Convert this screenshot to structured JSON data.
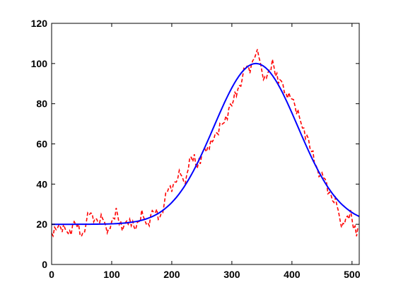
{
  "chart_data": {
    "type": "line",
    "title": "",
    "xlabel": "",
    "ylabel": "",
    "xlim": [
      0,
      512
    ],
    "ylim": [
      0,
      120
    ],
    "grid": false,
    "xticks": [
      0,
      100,
      200,
      300,
      400,
      500
    ],
    "yticks": [
      0,
      20,
      40,
      60,
      80,
      100,
      120
    ],
    "xtick_labels": [
      "0",
      "100",
      "200",
      "300",
      "400",
      "500"
    ],
    "ytick_labels": [
      "0",
      "20",
      "40",
      "60",
      "80",
      "100",
      "120"
    ],
    "series": [
      {
        "style": "dashed",
        "color": "#ff0000",
        "x": [
          0,
          10,
          20,
          30,
          40,
          50,
          60,
          70,
          80,
          90,
          100,
          110,
          120,
          130,
          140,
          150,
          160,
          170,
          180,
          190,
          200,
          210,
          220,
          230,
          240,
          250,
          260,
          270,
          280,
          290,
          300,
          310,
          320,
          330,
          340,
          350,
          360,
          370,
          380,
          390,
          400,
          410,
          420,
          430,
          440,
          450,
          460,
          470,
          480,
          490,
          500,
          510
        ],
        "y": [
          18,
          22,
          21,
          19,
          24,
          17,
          23,
          20,
          19,
          22,
          18,
          24,
          22,
          25,
          21,
          28,
          23,
          30,
          26,
          33,
          35,
          41,
          44,
          50,
          49,
          58,
          61,
          66,
          71,
          76,
          83,
          90,
          95,
          94,
          103,
          99,
          92,
          98,
          95,
          88,
          86,
          78,
          70,
          62,
          52,
          43,
          34,
          29,
          25,
          20,
          22,
          19
        ],
        "noise": [
          3.5,
          -4.8,
          2.1,
          -3.7,
          5.2,
          -1.9,
          4.3,
          -5.1,
          1.2,
          -2.8,
          4.9,
          -4.1,
          3.0,
          -5.5,
          2.6,
          -1.4,
          5.8,
          -3.3,
          0.7,
          -4.6,
          3.9,
          -2.2,
          5.4,
          -0.9,
          -3.8,
          2.4,
          -5.9,
          4.6,
          -1.7,
          3.2,
          -4.4,
          1.5,
          -2.6,
          5.1,
          -3.1,
          0.4,
          4.0,
          -5.3,
          2.9,
          -1.1,
          -4.9,
          3.6,
          -2.4,
          5.6,
          -0.6,
          -3.5,
          1.9,
          -5.7,
          4.4,
          -2.0,
          2.7,
          -4.2
        ]
      },
      {
        "style": "solid",
        "color": "#0000ff",
        "model": "gaussian",
        "baseline": 20,
        "amplitude": 80,
        "center": 340,
        "sigma": 70
      }
    ]
  }
}
